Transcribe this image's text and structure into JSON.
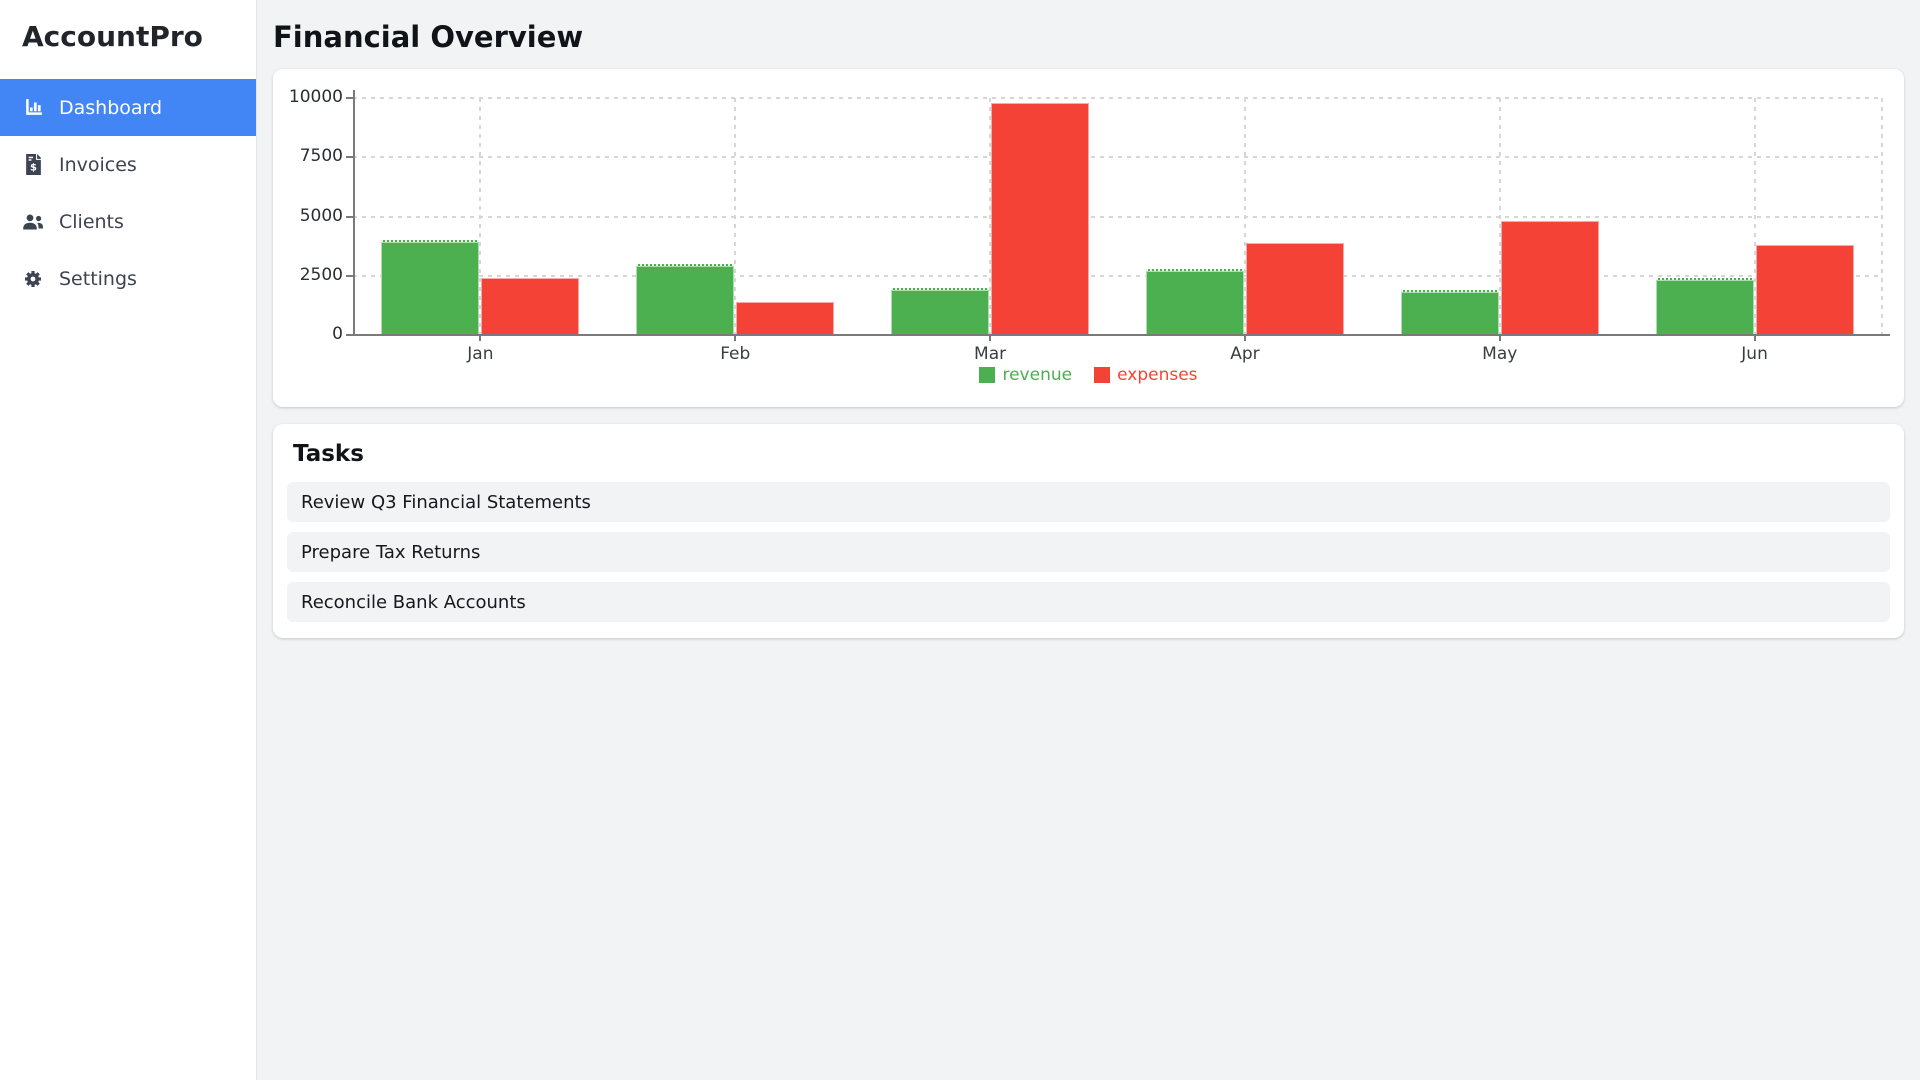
{
  "app": {
    "name": "AccountPro"
  },
  "sidebar": {
    "items": [
      {
        "label": "Dashboard",
        "icon": "bar-chart-icon",
        "active": true
      },
      {
        "label": "Invoices",
        "icon": "invoice-icon",
        "active": false
      },
      {
        "label": "Clients",
        "icon": "users-icon",
        "active": false
      },
      {
        "label": "Settings",
        "icon": "gear-icon",
        "active": false
      }
    ]
  },
  "main": {
    "title": "Financial Overview"
  },
  "chart_data": {
    "type": "bar",
    "title": "",
    "xlabel": "",
    "ylabel": "",
    "categories": [
      "Jan",
      "Feb",
      "Mar",
      "Apr",
      "May",
      "Jun"
    ],
    "series": [
      {
        "name": "revenue",
        "color": "#4caf50",
        "values": [
          4000,
          3000,
          2000,
          2800,
          1900,
          2400
        ]
      },
      {
        "name": "expenses",
        "color": "#f44336",
        "values": [
          2400,
          1400,
          9800,
          3900,
          4800,
          3800
        ]
      }
    ],
    "ylim": [
      0,
      10000
    ],
    "yticks": [
      0,
      2500,
      5000,
      7500,
      10000
    ],
    "grid": true,
    "legend_position": "bottom-center"
  },
  "tasks": {
    "title": "Tasks",
    "items": [
      "Review Q3 Financial Statements",
      "Prepare Tax Returns",
      "Reconcile Bank Accounts"
    ]
  },
  "colors": {
    "accent": "#4285f4",
    "revenue_green": "#4caf50",
    "expenses_red": "#f44336",
    "main_background": "#f1f3f4",
    "task_row_background": "#f1f3f5"
  }
}
